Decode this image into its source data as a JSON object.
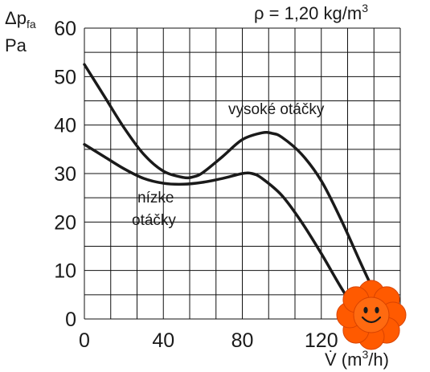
{
  "chart_data": {
    "type": "line",
    "density_label": "ρ = 1,20 kg/m",
    "density_exp": "3",
    "ylabel_sym": "Δp",
    "ylabel_sub": "fa",
    "ylabel_unit": "Pa",
    "xlabel_pre": "V̇ (m",
    "xlabel_exp": "3",
    "xlabel_post": "/h)",
    "xlim": [
      0,
      160
    ],
    "ylim": [
      0,
      60
    ],
    "x_ticks": [
      0,
      40,
      80,
      120
    ],
    "y_ticks": [
      0,
      10,
      20,
      30,
      40,
      50,
      60
    ],
    "grid": true,
    "series": [
      {
        "name": "vysoké otáčky",
        "x": [
          0,
          10,
          20,
          30,
          40,
          50,
          55,
          60,
          70,
          80,
          90,
          95,
          100,
          110,
          120,
          130,
          140,
          148
        ],
        "y": [
          52.5,
          46,
          39.5,
          34,
          30.5,
          29.2,
          29.3,
          30.2,
          33.5,
          37,
          38.4,
          38.3,
          37.5,
          34,
          28.5,
          20.5,
          11.5,
          4.5
        ]
      },
      {
        "name": "nízke otáčky",
        "line1": "nízke",
        "line2": "otáčky",
        "x": [
          0,
          10,
          20,
          30,
          40,
          50,
          60,
          70,
          80,
          85,
          90,
          100,
          110,
          120,
          130,
          138
        ],
        "y": [
          36,
          33.5,
          31,
          29,
          28,
          27.8,
          28.2,
          29,
          30,
          30,
          29,
          25.5,
          20,
          13.5,
          6.5,
          1.5
        ]
      }
    ]
  },
  "sticker": {
    "icon": "smiley-flower-icon",
    "petal_color": "#ff5a00",
    "face_color": "#ff6a10"
  }
}
